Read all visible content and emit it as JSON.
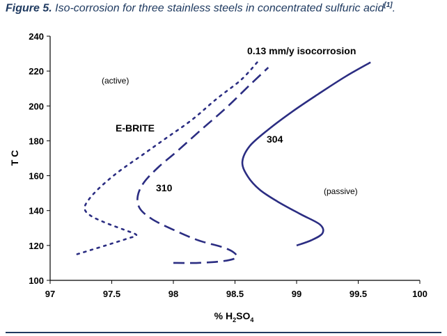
{
  "caption": {
    "figure_label": "Figure 5.",
    "text": " Iso-corrosion for three stainless steels in concentrated sulfuric acid",
    "reference": "[1]",
    "period": "."
  },
  "colors": {
    "series": "#2b2d82",
    "caption": "#1f3a60"
  },
  "chart_data": {
    "type": "line",
    "ylabel": "T C",
    "xlabel_main": "% H",
    "xlabel_sub1": "2",
    "xlabel_mid": "SO",
    "xlabel_sub2": "4",
    "xlim": [
      97,
      100
    ],
    "ylim": [
      100,
      240
    ],
    "xticks": [
      "97",
      "97.5",
      "98",
      "98.5",
      "99",
      "99.5",
      "100"
    ],
    "yticks": [
      "100",
      "120",
      "140",
      "160",
      "180",
      "200",
      "220",
      "240"
    ],
    "grid": false,
    "annotations": {
      "isocorrosion": "0.13 mm/y isocorrosion",
      "active": "(active)",
      "passive": "(passive)"
    },
    "series": [
      {
        "name": "E-BRITE",
        "style": "dotted",
        "points": [
          [
            97.22,
            115
          ],
          [
            97.45,
            120
          ],
          [
            97.63,
            124
          ],
          [
            97.7,
            126
          ],
          [
            97.6,
            129
          ],
          [
            97.45,
            133
          ],
          [
            97.33,
            137
          ],
          [
            97.28,
            141
          ],
          [
            97.31,
            146
          ],
          [
            97.4,
            153
          ],
          [
            97.55,
            162
          ],
          [
            97.75,
            172
          ],
          [
            97.95,
            182
          ],
          [
            98.15,
            192
          ],
          [
            98.35,
            204
          ],
          [
            98.55,
            215
          ],
          [
            98.68,
            225
          ]
        ]
      },
      {
        "name": "310",
        "style": "dashed",
        "points": [
          [
            98.0,
            110
          ],
          [
            98.2,
            110
          ],
          [
            98.4,
            111
          ],
          [
            98.51,
            113
          ],
          [
            98.49,
            116
          ],
          [
            98.4,
            119
          ],
          [
            98.2,
            123
          ],
          [
            98.0,
            129
          ],
          [
            97.83,
            135
          ],
          [
            97.73,
            141
          ],
          [
            97.71,
            148
          ],
          [
            97.76,
            156
          ],
          [
            97.88,
            165
          ],
          [
            98.03,
            174
          ],
          [
            98.22,
            186
          ],
          [
            98.43,
            199
          ],
          [
            98.62,
            212
          ],
          [
            98.77,
            222
          ]
        ]
      },
      {
        "name": "304",
        "style": "solid",
        "points": [
          [
            99.0,
            120
          ],
          [
            99.12,
            123
          ],
          [
            99.21,
            127
          ],
          [
            99.19,
            132
          ],
          [
            99.03,
            138
          ],
          [
            98.85,
            145
          ],
          [
            98.7,
            152
          ],
          [
            98.6,
            160
          ],
          [
            98.56,
            168
          ],
          [
            98.62,
            177
          ],
          [
            98.78,
            187
          ],
          [
            98.97,
            197
          ],
          [
            99.18,
            207
          ],
          [
            99.4,
            217
          ],
          [
            99.6,
            225
          ]
        ]
      }
    ]
  }
}
